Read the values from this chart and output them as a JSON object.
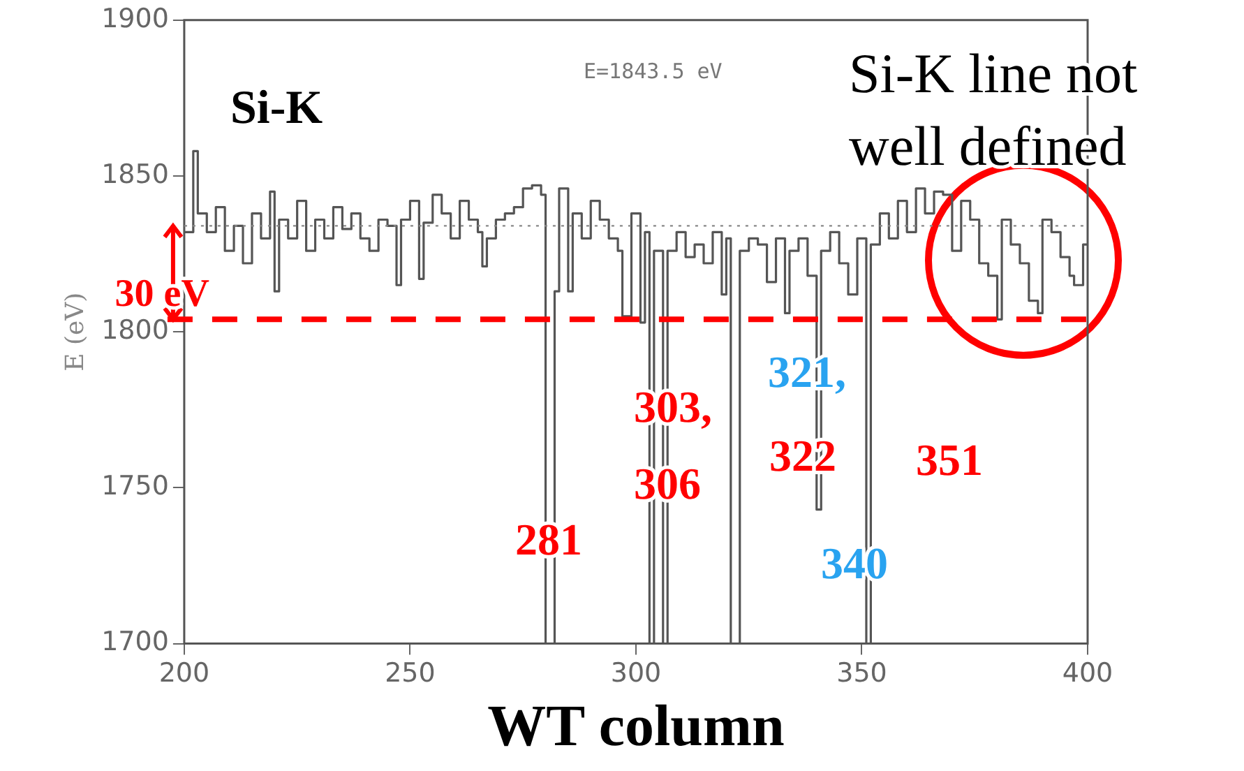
{
  "chart_data": {
    "type": "step",
    "xlabel": "WT column",
    "ylabel": "E (eV)",
    "xlim": [
      200,
      400
    ],
    "xticks": [
      200,
      250,
      300,
      350,
      400
    ],
    "ylim": [
      1700,
      1900
    ],
    "yticks": [
      1700,
      1750,
      1800,
      1850,
      1900
    ],
    "x": [
      200,
      202,
      203,
      205,
      207,
      209,
      211,
      213,
      215,
      217,
      219,
      220,
      221,
      223,
      225,
      227,
      229,
      231,
      233,
      235,
      237,
      239,
      241,
      243,
      245,
      247,
      248,
      250,
      252,
      253,
      255,
      257,
      259,
      261,
      263,
      265,
      266,
      267,
      269,
      271,
      273,
      275,
      277,
      279,
      280,
      282,
      283,
      285,
      286,
      288,
      290,
      292,
      294,
      296,
      297,
      299,
      301,
      302,
      303,
      304,
      306,
      307,
      309,
      311,
      313,
      315,
      317,
      319,
      320,
      321,
      323,
      325,
      327,
      329,
      331,
      333,
      334,
      336,
      338,
      340,
      341,
      343,
      345,
      347,
      349,
      351,
      352,
      354,
      356,
      358,
      360,
      362,
      364,
      366,
      368,
      370,
      372,
      374,
      376,
      378,
      380,
      381,
      383,
      385,
      387,
      389,
      390,
      392,
      394,
      396,
      397,
      399,
      400
    ],
    "series": [
      {
        "color": "#555555",
        "values": [
          1832,
          1858,
          1838,
          1832,
          1840,
          1826,
          1834,
          1822,
          1838,
          1830,
          1845,
          1813,
          1836,
          1830,
          1842,
          1826,
          1836,
          1830,
          1840,
          1833,
          1838,
          1830,
          1826,
          1836,
          1834,
          1815,
          1836,
          1842,
          1817,
          1835,
          1844,
          1838,
          1830,
          1842,
          1836,
          1832,
          1821,
          1830,
          1836,
          1838,
          1840,
          1846,
          1847,
          1844,
          1700,
          1813,
          1846,
          1813,
          1838,
          1830,
          1842,
          1836,
          1830,
          1826,
          1805,
          1838,
          1803,
          1832,
          1700,
          1826,
          1700,
          1826,
          1832,
          1824,
          1828,
          1822,
          1832,
          1812,
          1830,
          1700,
          1826,
          1830,
          1828,
          1816,
          1830,
          1806,
          1826,
          1830,
          1818,
          1743,
          1826,
          1832,
          1822,
          1812,
          1830,
          1700,
          1828,
          1838,
          1830,
          1842,
          1832,
          1846,
          1838,
          1845,
          1844,
          1826,
          1842,
          1836,
          1822,
          1818,
          1804,
          1836,
          1828,
          1822,
          1810,
          1806,
          1836,
          1832,
          1824,
          1818,
          1815,
          1828,
          1828
        ]
      }
    ],
    "ref_lines": [
      {
        "axis": "y",
        "value": 1834,
        "color": "#888888",
        "line_style": "dotted"
      },
      {
        "axis": "y",
        "value": 1804,
        "color": "#ff0000",
        "line_style": "dashed",
        "label": "30 eV"
      }
    ],
    "annotations": [
      "Si-K",
      "E=1843.5 eV",
      "Si-K line not well defined",
      "281",
      "303,",
      "306",
      "321,",
      "322",
      "351",
      "340"
    ],
    "grid": false,
    "legend": false,
    "marker": "none"
  }
}
